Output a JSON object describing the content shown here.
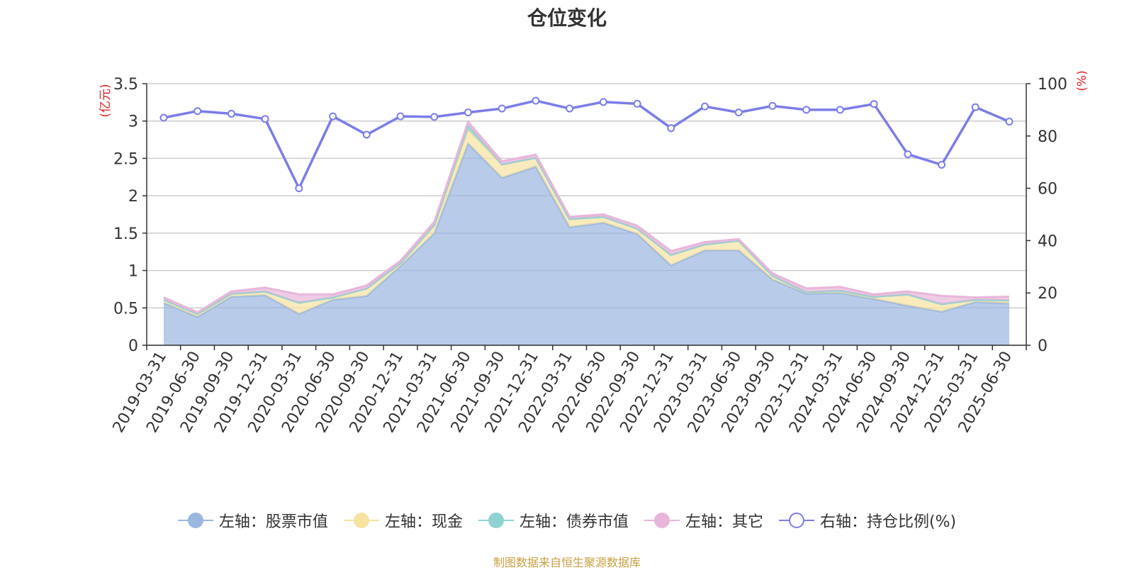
{
  "title": "仓位变化",
  "footer": "制图数据来自恒生聚源数据库",
  "colors": {
    "stock": "#9ab7e0",
    "cash": "#f7e3a0",
    "bond": "#8fd2d2",
    "other": "#e8b6da",
    "ratio": "#7b7de8"
  },
  "legend": [
    {
      "key": "stock",
      "label": "左轴：股票市值",
      "icon": "filled-circle-icon"
    },
    {
      "key": "cash",
      "label": "左轴：现金",
      "icon": "filled-circle-icon"
    },
    {
      "key": "bond",
      "label": "左轴：债券市值",
      "icon": "filled-circle-icon"
    },
    {
      "key": "other",
      "label": "左轴：其它",
      "icon": "filled-circle-icon"
    },
    {
      "key": "ratio",
      "label": "右轴：持仓比例(%)",
      "icon": "hollow-circle-icon"
    }
  ],
  "chart_data": {
    "type": "area",
    "stacked": true,
    "ylabel_left": "(亿元)",
    "ylabel_right": "(%)",
    "ylim_left": [
      0,
      3.5
    ],
    "ylim_right": [
      0,
      100
    ],
    "yticks_left": [
      "0",
      "0.5",
      "1",
      "1.5",
      "2",
      "2.5",
      "3",
      "3.5"
    ],
    "yticks_right": [
      "0",
      "20",
      "40",
      "60",
      "80",
      "100"
    ],
    "grid": true,
    "legend_position": "bottom",
    "categories": [
      "2019-03-31",
      "2019-06-30",
      "2019-09-30",
      "2019-12-31",
      "2020-03-31",
      "2020-06-30",
      "2020-09-30",
      "2020-12-31",
      "2021-03-31",
      "2021-06-30",
      "2021-09-30",
      "2021-12-31",
      "2022-03-31",
      "2022-06-30",
      "2022-09-30",
      "2022-12-31",
      "2023-03-31",
      "2023-06-30",
      "2023-09-30",
      "2023-12-31",
      "2024-03-31",
      "2024-06-30",
      "2024-09-30",
      "2024-12-31",
      "2025-03-31",
      "2025-06-30"
    ],
    "series": [
      {
        "name": "左轴：股票市值",
        "key": "stock",
        "axis": "left",
        "values": [
          0.57,
          0.38,
          0.65,
          0.67,
          0.42,
          0.61,
          0.66,
          1.06,
          1.5,
          2.7,
          2.24,
          2.39,
          1.58,
          1.64,
          1.49,
          1.07,
          1.27,
          1.27,
          0.88,
          0.69,
          0.7,
          0.62,
          0.53,
          0.45,
          0.58,
          0.56
        ]
      },
      {
        "name": "左轴：现金",
        "key": "cash",
        "axis": "left",
        "values": [
          0.04,
          0.04,
          0.04,
          0.05,
          0.15,
          0.03,
          0.1,
          0.04,
          0.11,
          0.18,
          0.18,
          0.12,
          0.11,
          0.08,
          0.07,
          0.14,
          0.08,
          0.13,
          0.05,
          0.02,
          0.03,
          0.03,
          0.15,
          0.1,
          0.03,
          0.04
        ]
      },
      {
        "name": "左轴：债券市值",
        "key": "bond",
        "axis": "left",
        "values": [
          0,
          0,
          0,
          0,
          0,
          0,
          0,
          0,
          0,
          0.06,
          0,
          0,
          0,
          0,
          0,
          0,
          0,
          0,
          0,
          0,
          0,
          0,
          0,
          0,
          0,
          0
        ]
      },
      {
        "name": "左轴：其它",
        "key": "other",
        "axis": "left",
        "values": [
          0.03,
          0.02,
          0.03,
          0.05,
          0.11,
          0.04,
          0.04,
          0.03,
          0.04,
          0.05,
          0.04,
          0.04,
          0.03,
          0.03,
          0.04,
          0.05,
          0.03,
          0.02,
          0.03,
          0.05,
          0.05,
          0.03,
          0.04,
          0.11,
          0.03,
          0.05
        ]
      },
      {
        "name": "右轴：持仓比例(%)",
        "key": "ratio",
        "axis": "right",
        "type": "line",
        "values": [
          87,
          89.5,
          88.5,
          86.5,
          60,
          87.5,
          80.5,
          87.5,
          87.3,
          89,
          90.5,
          93.5,
          90.5,
          93,
          92.3,
          83,
          91.3,
          89,
          91.5,
          90,
          90,
          92.2,
          73,
          69,
          91,
          85.5
        ]
      }
    ]
  }
}
